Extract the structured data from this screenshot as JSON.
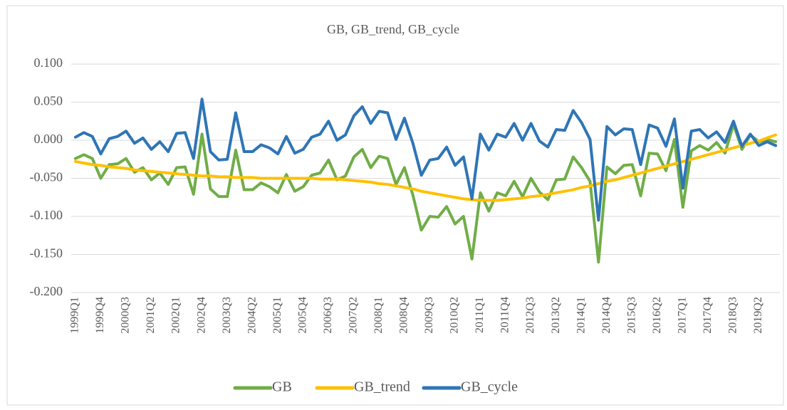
{
  "chart_data": {
    "type": "line",
    "title": "GB, GB_trend, GB_cycle",
    "categories": [
      "1999Q1",
      null,
      null,
      "1999Q4",
      null,
      null,
      "2000Q3",
      null,
      null,
      "2001Q2",
      null,
      null,
      "2002Q1",
      null,
      null,
      "2002Q4",
      null,
      null,
      "2003Q3",
      null,
      null,
      "2004Q2",
      null,
      null,
      "2005Q1",
      null,
      null,
      "2005Q4",
      null,
      null,
      "2006Q3",
      null,
      null,
      "2007Q2",
      null,
      null,
      "2008Q1",
      null,
      null,
      "2008Q4",
      null,
      null,
      "2009Q3",
      null,
      null,
      "2010Q2",
      null,
      null,
      "2011Q1",
      null,
      null,
      "2011Q4",
      null,
      null,
      "2012Q3",
      null,
      null,
      "2013Q2",
      null,
      null,
      "2014Q1",
      null,
      null,
      "2014Q4",
      null,
      null,
      "2015Q3",
      null,
      null,
      "2016Q2",
      null,
      null,
      "2017Q1",
      null,
      null,
      "2017Q4",
      null,
      null,
      "2018Q3",
      null,
      null,
      "2019Q2",
      null,
      null
    ],
    "series": [
      {
        "name": "GB",
        "color": "#70ad47",
        "values": [
          -0.024,
          -0.019,
          -0.024,
          -0.05,
          -0.032,
          -0.031,
          -0.024,
          -0.042,
          -0.036,
          -0.052,
          -0.043,
          -0.058,
          -0.036,
          -0.035,
          -0.071,
          0.008,
          -0.064,
          -0.074,
          -0.074,
          -0.013,
          -0.065,
          -0.065,
          -0.056,
          -0.061,
          -0.069,
          -0.045,
          -0.067,
          -0.061,
          -0.046,
          -0.043,
          -0.026,
          -0.052,
          -0.047,
          -0.022,
          -0.012,
          -0.036,
          -0.021,
          -0.024,
          -0.058,
          -0.036,
          -0.072,
          -0.118,
          -0.1,
          -0.101,
          -0.087,
          -0.11,
          -0.1,
          -0.156,
          -0.069,
          -0.093,
          -0.069,
          -0.073,
          -0.054,
          -0.074,
          -0.05,
          -0.068,
          -0.078,
          -0.052,
          -0.051,
          -0.022,
          -0.036,
          -0.054,
          -0.16,
          -0.035,
          -0.044,
          -0.033,
          -0.032,
          -0.073,
          -0.017,
          -0.018,
          -0.04,
          0.001,
          -0.088,
          -0.014,
          -0.007,
          -0.013,
          -0.003,
          -0.017,
          0.021,
          -0.012,
          0.007,
          -0.002,
          0.001,
          -0.002
        ]
      },
      {
        "name": "GB_trend",
        "color": "#ffc000",
        "values": [
          -0.028,
          -0.03,
          -0.032,
          -0.033,
          -0.035,
          -0.036,
          -0.037,
          -0.039,
          -0.04,
          -0.041,
          -0.042,
          -0.043,
          -0.044,
          -0.045,
          -0.046,
          -0.047,
          -0.047,
          -0.048,
          -0.048,
          -0.049,
          -0.049,
          -0.049,
          -0.05,
          -0.05,
          -0.05,
          -0.05,
          -0.05,
          -0.05,
          -0.05,
          -0.051,
          -0.051,
          -0.051,
          -0.052,
          -0.053,
          -0.054,
          -0.055,
          -0.057,
          -0.058,
          -0.06,
          -0.062,
          -0.064,
          -0.067,
          -0.069,
          -0.071,
          -0.073,
          -0.075,
          -0.077,
          -0.078,
          -0.079,
          -0.079,
          -0.079,
          -0.078,
          -0.077,
          -0.076,
          -0.074,
          -0.073,
          -0.071,
          -0.069,
          -0.067,
          -0.065,
          -0.062,
          -0.06,
          -0.057,
          -0.054,
          -0.052,
          -0.049,
          -0.046,
          -0.043,
          -0.04,
          -0.037,
          -0.034,
          -0.031,
          -0.028,
          -0.025,
          -0.022,
          -0.019,
          -0.016,
          -0.013,
          -0.01,
          -0.007,
          -0.004,
          -0.001,
          0.003,
          0.007
        ]
      },
      {
        "name": "GB_cycle",
        "color": "#2e75b6",
        "values": [
          0.004,
          0.01,
          0.005,
          -0.018,
          0.002,
          0.005,
          0.012,
          -0.004,
          0.003,
          -0.012,
          -0.002,
          -0.015,
          0.009,
          0.01,
          -0.024,
          0.054,
          -0.015,
          -0.026,
          -0.025,
          0.036,
          -0.015,
          -0.015,
          -0.006,
          -0.01,
          -0.018,
          0.005,
          -0.017,
          -0.012,
          0.004,
          0.008,
          0.025,
          0.0,
          0.007,
          0.032,
          0.044,
          0.022,
          0.038,
          0.036,
          0.001,
          0.029,
          -0.004,
          -0.046,
          -0.026,
          -0.024,
          -0.009,
          -0.033,
          -0.022,
          -0.077,
          0.008,
          -0.013,
          0.008,
          0.004,
          0.022,
          0.0,
          0.022,
          -0.001,
          -0.009,
          0.014,
          0.013,
          0.039,
          0.023,
          0.001,
          -0.105,
          0.018,
          0.007,
          0.015,
          0.014,
          -0.032,
          0.02,
          0.016,
          -0.008,
          0.028,
          -0.063,
          0.012,
          0.014,
          0.003,
          0.011,
          -0.003,
          0.025,
          -0.008,
          0.008,
          -0.007,
          -0.002,
          -0.007
        ]
      }
    ],
    "ylim": [
      -0.2,
      0.1
    ],
    "yticks": [
      {
        "value": 0.1,
        "label": "0.100"
      },
      {
        "value": 0.05,
        "label": "0.050"
      },
      {
        "value": 0,
        "label": "0.000"
      },
      {
        "value": -0.05,
        "label": "-0.050"
      },
      {
        "value": -0.1,
        "label": "-0.100"
      },
      {
        "value": -0.15,
        "label": "-0.150"
      },
      {
        "value": -0.2,
        "label": "-0.200"
      }
    ],
    "grid": true,
    "legend": "bottom"
  }
}
